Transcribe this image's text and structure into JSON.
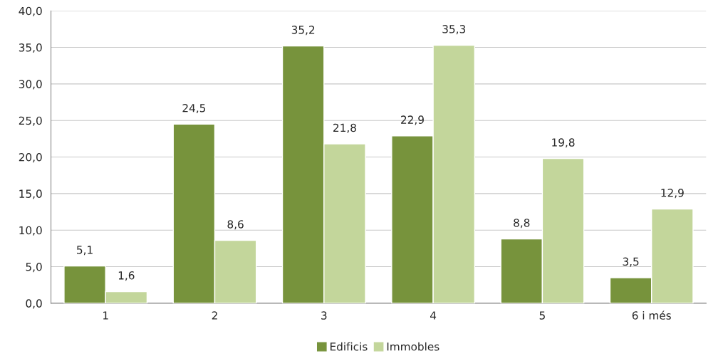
{
  "chart_data": {
    "type": "bar",
    "categories": [
      "1",
      "2",
      "3",
      "4",
      "5",
      "6 i més"
    ],
    "series": [
      {
        "name": "Edificis",
        "color": "#77933c",
        "values": [
          5.1,
          24.5,
          35.2,
          22.9,
          8.8,
          3.5
        ],
        "value_labels": [
          "5,1",
          "24,5",
          "35,2",
          "22,9",
          "8,8",
          "3,5"
        ]
      },
      {
        "name": "Immobles",
        "color": "#c3d69b",
        "values": [
          1.6,
          8.6,
          21.8,
          35.3,
          19.8,
          12.9
        ],
        "value_labels": [
          "1,6",
          "8,6",
          "21,8",
          "35,3",
          "19,8",
          "12,9"
        ]
      }
    ],
    "ylim": [
      0,
      40
    ],
    "yticks": [
      {
        "value": 0,
        "label": "0,0"
      },
      {
        "value": 5,
        "label": "5,0"
      },
      {
        "value": 10,
        "label": "10,0"
      },
      {
        "value": 15,
        "label": "15,0"
      },
      {
        "value": 20,
        "label": "20,0"
      },
      {
        "value": 25,
        "label": "25,0"
      },
      {
        "value": 30,
        "label": "30,0"
      },
      {
        "value": 35,
        "label": "35,0"
      },
      {
        "value": 40,
        "label": "40,0"
      }
    ],
    "grid": "y",
    "legend": "bottom"
  }
}
